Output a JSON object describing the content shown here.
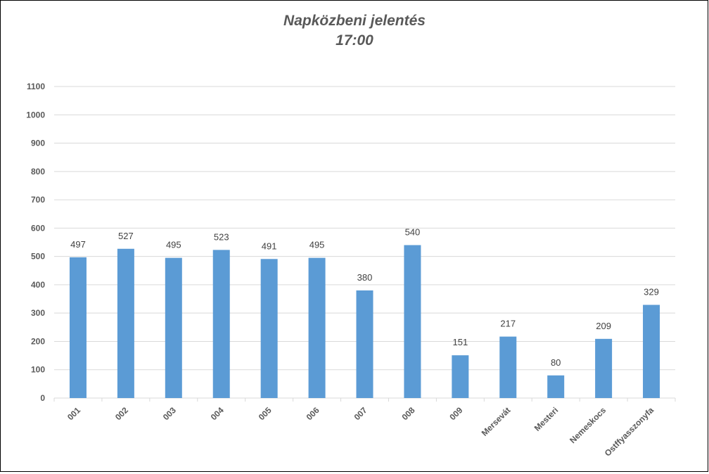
{
  "chart_data": {
    "type": "bar",
    "title": "Napközbeni jelentés",
    "subtitle": "17:00",
    "xlabel": "",
    "ylabel": "",
    "ylim": [
      0,
      1100
    ],
    "yticks": [
      "0",
      "100",
      "200",
      "300",
      "400",
      "500",
      "600",
      "700",
      "800",
      "900",
      "1000",
      "1100"
    ],
    "grid": true,
    "legend": "none",
    "categories": [
      "001",
      "002",
      "003",
      "004",
      "005",
      "006",
      "007",
      "008",
      "009",
      "Mersevát",
      "Mesteri",
      "Nemeskocs",
      "Ostffyasszonyfa"
    ],
    "values": [
      497,
      527,
      495,
      523,
      491,
      495,
      380,
      540,
      151,
      217,
      80,
      209,
      329
    ],
    "colors": {
      "bar": "#5b9bd5",
      "grid": "#d9d9d9",
      "axis_text": "#595959",
      "label_text": "#404040",
      "frame": "#000000"
    }
  }
}
